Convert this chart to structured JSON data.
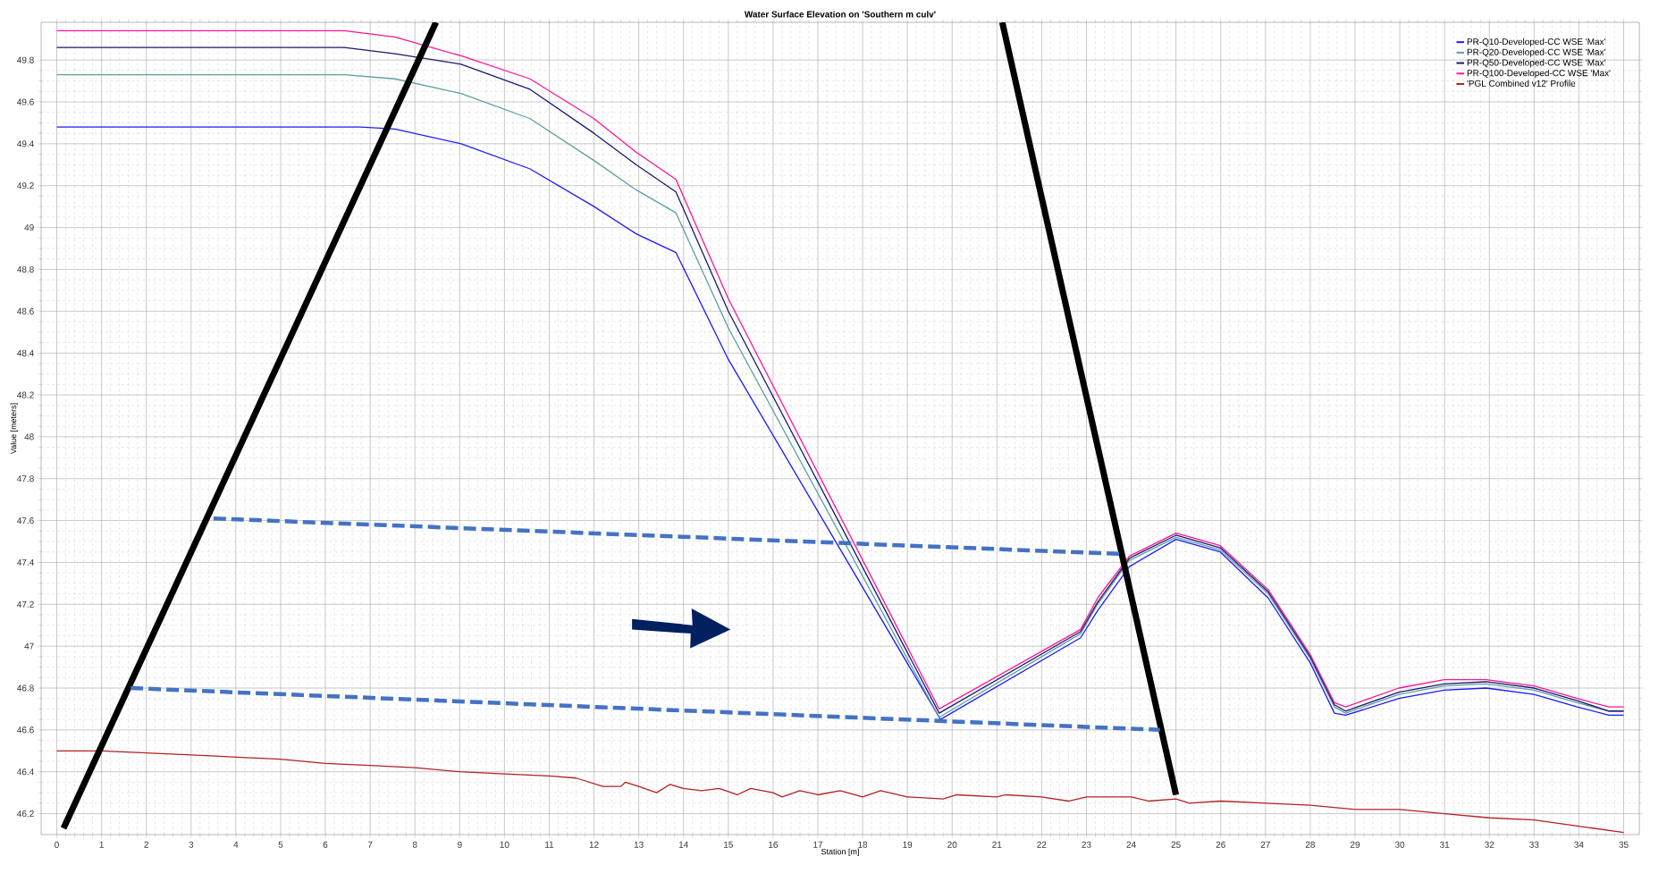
{
  "chart_data": {
    "type": "line",
    "title": "Water Surface Elevation on 'Southern m culv'",
    "xlabel": "Station [m]",
    "ylabel": "Value [meters]",
    "xlim": [
      -0.35,
      35.35
    ],
    "ylim": [
      46.1,
      49.98
    ],
    "xticks": [
      0,
      1,
      2,
      3,
      4,
      5,
      6,
      7,
      8,
      9,
      10,
      11,
      12,
      13,
      14,
      15,
      16,
      17,
      18,
      19,
      20,
      21,
      22,
      23,
      24,
      25,
      26,
      27,
      28,
      29,
      30,
      31,
      32,
      33,
      34,
      35
    ],
    "yticks": [
      46.2,
      46.4,
      46.6,
      46.8,
      47,
      47.2,
      47.4,
      47.6,
      47.8,
      48,
      48.2,
      48.4,
      48.6,
      48.8,
      49,
      49.2,
      49.4,
      49.6,
      49.8
    ],
    "grid": true,
    "legend": "top right",
    "marker": "none",
    "line_style": "solid",
    "series": [
      {
        "name": "PR-Q10-Developed-CC WSE 'Max'",
        "color": "#1a1aff",
        "x": [
          0,
          6.78,
          7.55,
          9.03,
          10.57,
          12.0,
          12.94,
          13.83,
          15.0,
          19.74,
          22.87,
          23.25,
          23.96,
          25.0,
          25.99,
          27.06,
          28.0,
          28.54,
          28.79,
          29.98,
          30.99,
          31.93,
          33.0,
          33.96,
          34.67,
          35.0
        ],
        "values": [
          49.48,
          49.48,
          49.47,
          49.4,
          49.28,
          49.1,
          48.97,
          48.88,
          48.37,
          46.65,
          47.04,
          47.17,
          47.38,
          47.51,
          47.45,
          47.23,
          46.92,
          46.68,
          46.67,
          46.75,
          46.79,
          46.8,
          46.77,
          46.71,
          46.67,
          46.67
        ]
      },
      {
        "name": "PR-Q20-Developed-CC WSE 'Max'",
        "color": "#5f9ea0",
        "x": [
          0,
          6.42,
          7.55,
          9.03,
          10.57,
          12.0,
          12.94,
          13.83,
          15.0,
          19.71,
          22.87,
          23.25,
          23.96,
          25.0,
          25.99,
          27.06,
          28.0,
          28.54,
          28.79,
          29.98,
          30.99,
          31.93,
          33.0,
          33.96,
          34.67,
          35.0
        ],
        "values": [
          49.73,
          49.73,
          49.71,
          49.64,
          49.52,
          49.32,
          49.18,
          49.07,
          48.52,
          46.66,
          47.06,
          47.2,
          47.41,
          47.52,
          47.46,
          47.25,
          46.94,
          46.71,
          46.68,
          46.77,
          46.81,
          46.82,
          46.79,
          46.73,
          46.69,
          46.69
        ]
      },
      {
        "name": "PR-Q50-Developed-CC WSE 'Max'",
        "color": "#191970",
        "x": [
          0,
          6.42,
          7.55,
          9.03,
          10.57,
          12.0,
          12.94,
          13.83,
          15.0,
          19.71,
          22.87,
          23.25,
          23.96,
          25.0,
          25.99,
          27.06,
          28.0,
          28.54,
          28.79,
          29.98,
          30.99,
          31.93,
          33.0,
          33.96,
          34.67,
          35.0
        ],
        "values": [
          49.86,
          49.86,
          49.83,
          49.78,
          49.66,
          49.45,
          49.3,
          49.17,
          48.6,
          46.68,
          47.07,
          47.21,
          47.42,
          47.53,
          47.47,
          47.26,
          46.95,
          46.72,
          46.69,
          46.78,
          46.82,
          46.83,
          46.8,
          46.74,
          46.69,
          46.69
        ]
      },
      {
        "name": "PR-Q100-Developed-CC WSE 'Max'",
        "color": "#ff1493",
        "x": [
          0,
          6.42,
          7.55,
          9.03,
          10.57,
          12.0,
          12.94,
          13.83,
          15.0,
          19.71,
          22.87,
          23.25,
          23.96,
          25.0,
          25.99,
          27.06,
          28.0,
          28.54,
          28.79,
          29.98,
          30.99,
          31.93,
          33.0,
          33.96,
          34.67,
          35.0
        ],
        "values": [
          49.94,
          49.94,
          49.91,
          49.82,
          49.71,
          49.52,
          49.36,
          49.23,
          48.66,
          46.7,
          47.08,
          47.23,
          47.43,
          47.54,
          47.48,
          47.27,
          46.96,
          46.73,
          46.71,
          46.8,
          46.84,
          46.84,
          46.81,
          46.75,
          46.71,
          46.71
        ]
      },
      {
        "name": "'PGL Combined v12' Profile",
        "color": "#b22222",
        "x": [
          0,
          1,
          2,
          3,
          4,
          5,
          6,
          7,
          8,
          9,
          10,
          11,
          11.6,
          12.2,
          12.6,
          12.7,
          13,
          13.4,
          13.7,
          14,
          14.4,
          14.8,
          15.2,
          15.5,
          16,
          16.2,
          16.6,
          17,
          17.5,
          18,
          18.4,
          19,
          19.8,
          20.1,
          21,
          21.2,
          22,
          22.6,
          23,
          24,
          24.4,
          25,
          25.3,
          26,
          27,
          28,
          29,
          30,
          31,
          32,
          33,
          34,
          35
        ],
        "values": [
          46.5,
          46.5,
          46.49,
          46.48,
          46.47,
          46.46,
          46.44,
          46.43,
          46.42,
          46.4,
          46.39,
          46.38,
          46.37,
          46.33,
          46.33,
          46.35,
          46.33,
          46.3,
          46.34,
          46.32,
          46.31,
          46.32,
          46.29,
          46.32,
          46.3,
          46.28,
          46.31,
          46.29,
          46.31,
          46.28,
          46.31,
          46.28,
          46.27,
          46.29,
          46.28,
          46.29,
          46.28,
          46.26,
          46.28,
          46.28,
          46.26,
          46.27,
          46.25,
          46.26,
          46.25,
          46.24,
          46.22,
          46.22,
          46.2,
          46.18,
          46.17,
          46.14,
          46.11
        ]
      },
      {
        "type": "line",
        "color": "#000000",
        "x": [
          0.15,
          8.47
        ],
        "values": [
          46.13,
          49.98
        ]
      },
      {
        "type": "line",
        "color": "#000000",
        "x": [
          21.12,
          25.0
        ],
        "values": [
          49.98,
          46.29
        ]
      },
      {
        "type": "line",
        "color": "#4472c4",
        "line_style": "dashed",
        "x": [
          3.5,
          23.85
        ],
        "values": [
          47.61,
          47.44
        ]
      },
      {
        "type": "line",
        "color": "#4472c4",
        "line_style": "dashed",
        "x": [
          1.65,
          24.64
        ],
        "values": [
          46.8,
          46.6
        ]
      }
    ]
  }
}
